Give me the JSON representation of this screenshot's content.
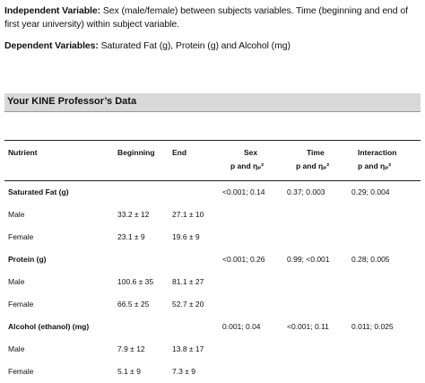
{
  "intro": {
    "iv_label": "Independent Variable:",
    "iv_text": " Sex (male/female) between subjects variables.  Time (beginning and end of first year university) within subject variable.",
    "dv_label": "Dependent Variables:",
    "dv_text": " Saturated Fat (g), Protein (g) and Alcohol (mg)"
  },
  "section": {
    "title": "Your KINE Professor’s Data"
  },
  "table": {
    "headers": {
      "nutrient": "Nutrient",
      "beginning": "Beginning",
      "end": "End",
      "sex_line1": "Sex",
      "sex_line2": "p and ηₚ²",
      "time_line1": "Time",
      "time_line2": "p and ηₚ²",
      "interaction_line1": "Interaction",
      "interaction_line2": "p and ηₚ²"
    },
    "groups": [
      {
        "name": "Saturated Fat (g)",
        "sex": "<0.001; 0.14",
        "time": "0.37; 0.003",
        "interaction": "0.29; 0.004",
        "rows": [
          {
            "label": "Male",
            "beginning": "33.2 ± 12",
            "end": "27.1 ± 10"
          },
          {
            "label": "Female",
            "beginning": "23.1 ± 9",
            "end": "19.6 ± 9"
          }
        ]
      },
      {
        "name": "Protein (g)",
        "sex": "<0.001; 0.26",
        "time": "0.99; <0.001",
        "interaction": "0.28; 0.005",
        "rows": [
          {
            "label": "Male",
            "beginning": "100.6 ± 35",
            "end": "81.1 ± 27"
          },
          {
            "label": "Female",
            "beginning": "66.5 ± 25",
            "end": "52.7 ± 20"
          }
        ]
      },
      {
        "name": "Alcohol (ethanol) (mg)",
        "sex": "0.001; 0.04",
        "time": "<0.001; 0.11",
        "interaction": "0.011; 0.025",
        "rows": [
          {
            "label": "Male",
            "beginning": "7.9 ± 12",
            "end": "13.8 ± 17"
          },
          {
            "label": "Female",
            "beginning": "5.1 ± 9",
            "end": "7.3 ± 9"
          }
        ]
      }
    ]
  }
}
